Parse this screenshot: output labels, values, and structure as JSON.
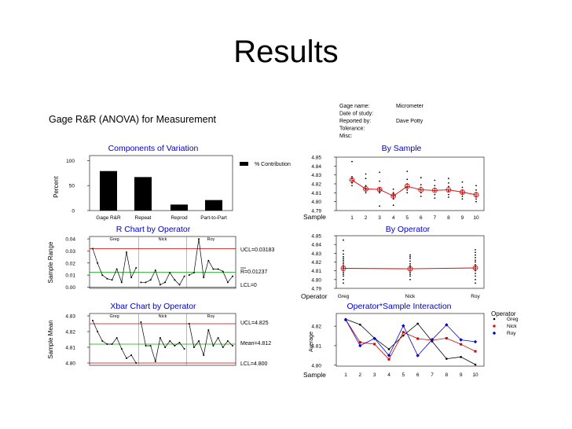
{
  "slide_title": "Results",
  "report": {
    "title": "Gage R&R (ANOVA) for Measurement",
    "info": [
      {
        "label": "Gage name:",
        "value": "Micrometer"
      },
      {
        "label": "Date of study:",
        "value": ""
      },
      {
        "label": "Reported by:",
        "value": "Dave Potty"
      },
      {
        "label": "Tolerance:",
        "value": ""
      },
      {
        "label": "Misc:",
        "value": ""
      }
    ]
  },
  "chart_data": [
    {
      "id": "components",
      "type": "bar",
      "title": "Components of Variation",
      "ylabel": "Percent",
      "categories": [
        "Gage R&R",
        "Repeat",
        "Reprod",
        "Part-to-Part"
      ],
      "series": [
        {
          "name": "% Contribution",
          "values": [
            79,
            67,
            12,
            21
          ]
        }
      ],
      "ylim": [
        0,
        110
      ],
      "yticks": [
        "0",
        "50",
        "100"
      ],
      "legend": "right"
    },
    {
      "id": "by-sample",
      "type": "scatter",
      "title": "By Sample",
      "xlabel": "Sample",
      "x": [
        1,
        2,
        3,
        4,
        5,
        6,
        7,
        8,
        9,
        10
      ],
      "means": [
        4.8243,
        4.8143,
        4.8137,
        4.8063,
        4.8173,
        4.8133,
        4.8127,
        4.8133,
        4.8107,
        4.8077
      ],
      "points": [
        [
          4.845,
          4.828,
          4.826,
          4.822,
          4.821,
          4.818
        ],
        [
          4.831,
          4.826,
          4.818,
          4.815,
          4.813,
          4.81
        ],
        [
          4.833,
          4.823,
          4.815,
          4.812,
          4.81,
          4.795
        ],
        [
          4.814,
          4.81,
          4.808,
          4.805,
          4.803,
          4.796
        ],
        [
          4.834,
          4.825,
          4.82,
          4.816,
          4.813,
          4.81
        ],
        [
          4.827,
          4.819,
          4.816,
          4.813,
          4.81,
          4.806
        ],
        [
          4.824,
          4.818,
          4.815,
          4.812,
          4.808,
          4.804
        ],
        [
          4.826,
          4.821,
          4.817,
          4.812,
          4.808,
          4.805
        ],
        [
          4.822,
          4.816,
          4.813,
          4.809,
          4.806,
          4.803
        ],
        [
          4.818,
          4.813,
          4.81,
          4.806,
          4.803,
          4.8
        ]
      ],
      "ylim": [
        4.79,
        4.85
      ],
      "yticks": [
        "4.79",
        "4.80",
        "4.81",
        "4.82",
        "4.83",
        "4.84",
        "4.85"
      ]
    },
    {
      "id": "r-chart",
      "type": "line",
      "title": "R Chart by Operator",
      "ylabel": "Sample Range",
      "operators": [
        "Greg",
        "Nick",
        "Roy"
      ],
      "values": [
        0.032,
        0.02,
        0.01,
        0.007,
        0.006,
        0.015,
        0.004,
        0.029,
        0.008,
        0.016,
        0.004,
        0.004,
        0.006,
        0.014,
        0.002,
        0.004,
        0.012,
        0.006,
        0.002,
        0.009,
        0.01,
        0.012,
        0.04,
        0.008,
        0.022,
        0.015,
        0.015,
        0.013,
        0.004,
        0.009
      ],
      "ucl": 0.03183,
      "center": 0.01237,
      "lcl": 0,
      "ucl_label": "UCL=0.03183",
      "center_label": "R=0.01237",
      "lcl_label": "LCL=0",
      "ylim": [
        -0.001,
        0.042
      ],
      "yticks": [
        "0.00",
        "0.01",
        "0.02",
        "0.03",
        "0.04"
      ]
    },
    {
      "id": "by-operator",
      "type": "scatter",
      "title": "By Operator",
      "xlabel": "Operator",
      "categories": [
        "Greg",
        "Nick",
        "Roy"
      ],
      "means": [
        4.8128,
        4.8123,
        4.8133
      ],
      "points": [
        [
          4.845,
          4.833,
          4.829,
          4.826,
          4.824,
          4.822,
          4.82,
          4.818,
          4.816,
          4.814,
          4.812,
          4.81,
          4.808,
          4.806,
          4.804,
          4.8,
          4.796
        ],
        [
          4.828,
          4.826,
          4.824,
          4.821,
          4.818,
          4.816,
          4.814,
          4.812,
          4.81,
          4.808,
          4.806,
          4.804,
          4.8
        ],
        [
          4.834,
          4.831,
          4.828,
          4.825,
          4.822,
          4.82,
          4.817,
          4.815,
          4.812,
          4.81,
          4.807,
          4.804,
          4.8,
          4.796
        ]
      ],
      "ylim": [
        4.79,
        4.85
      ],
      "yticks": [
        "4.79",
        "4.80",
        "4.81",
        "4.82",
        "4.83",
        "4.84",
        "4.85"
      ]
    },
    {
      "id": "xbar-chart",
      "type": "line",
      "title": "Xbar Chart by Operator",
      "ylabel": "Sample Mean",
      "operators": [
        "Greg",
        "Nick",
        "Roy"
      ],
      "values": [
        4.827,
        4.82,
        4.814,
        4.812,
        4.812,
        4.816,
        4.809,
        4.803,
        4.805,
        4.8,
        4.826,
        4.811,
        4.811,
        4.801,
        4.816,
        4.81,
        4.814,
        4.811,
        4.813,
        4.809,
        4.825,
        4.81,
        4.814,
        4.805,
        4.821,
        4.811,
        4.816,
        4.81,
        4.814,
        4.811
      ],
      "ucl": 4.825,
      "center": 4.812,
      "lcl": 4.8,
      "ucl_label": "UCL=4.825",
      "center_label": "Mean=4.812",
      "lcl_label": "LCL=4.800",
      "ylim": [
        4.7985,
        4.8315
      ],
      "yticks": [
        "4.80",
        "4.81",
        "4.82",
        "4.83"
      ]
    },
    {
      "id": "interaction",
      "type": "line",
      "title": "Operator*Sample Interaction",
      "xlabel": "Sample",
      "ylabel": "Average",
      "x": [
        1,
        2,
        3,
        4,
        5,
        6,
        7,
        8,
        9,
        10
      ],
      "series": [
        {
          "name": "Greg",
          "color": "#000000",
          "values": [
            4.8236,
            4.8208,
            4.8138,
            4.8082,
            4.8152,
            4.8213,
            4.8122,
            4.8033,
            4.8042,
            4.8003
          ]
        },
        {
          "name": "Nick",
          "color": "#cc0000",
          "values": [
            4.8233,
            4.8117,
            4.8108,
            4.803,
            4.8169,
            4.8136,
            4.8128,
            4.8138,
            4.8107,
            4.8071
          ]
        },
        {
          "name": "Roy",
          "color": "#0000cc",
          "values": [
            4.8233,
            4.81,
            4.8137,
            4.805,
            4.8202,
            4.8049,
            4.8131,
            4.8207,
            4.813,
            4.812
          ]
        }
      ],
      "ylim": [
        4.7995,
        4.8265
      ],
      "yticks": [
        "4.80",
        "4.81",
        "4.82"
      ],
      "legend_title": "Operator",
      "legend": "right"
    }
  ]
}
